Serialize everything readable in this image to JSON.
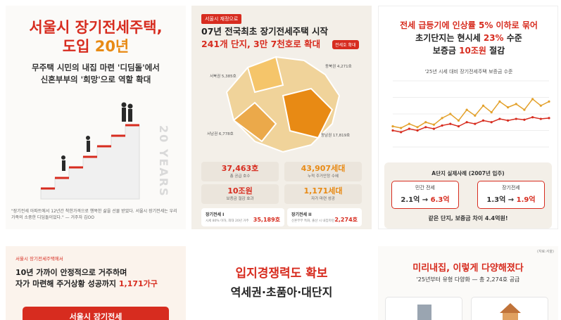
{
  "card1": {
    "title_line1": "서울시 장기전세주택,",
    "title_line2_pre": "도입 ",
    "title_line2_hl": "20년",
    "sub_line1": "무주택 시민의 내집 마련 '디딤돌'에서",
    "sub_line2": "신혼부부의 '희망'으로 역할 확대",
    "years": "20 YEARS",
    "quote": "\"장기전세 아파트에서 12년간 착한가격으로 행복한 삶을 선물 받았다. 서울시 장기전세는 우리 가족의 소중한 디딤돌이었다.\" — 거주자 김OO"
  },
  "card2": {
    "tag": "서울시 재정으로",
    "title": "07년 전국최초 장기전세주택 시작",
    "title2": "241개 단지, 3만 7천호로 확대",
    "badge": "전세호 확대",
    "map_labels": [
      "서북권 5,385호",
      "동북권 4,271호",
      "서남권 6,778호",
      "동남권 17,819호"
    ],
    "stats": [
      {
        "value": "37,463호",
        "label": "총 공급 호수"
      },
      {
        "value": "43,907세대",
        "label": "누적 주거안정 수혜"
      },
      {
        "value": "10조원",
        "label": "보증금 절감 효과"
      },
      {
        "value": "1,171세대",
        "label": "자가 마련 성공"
      }
    ],
    "bottom": [
      {
        "name": "장기전세 I",
        "desc": "시세 80% 이하, 최대 20년 거주",
        "value": "35,189호"
      },
      {
        "name": "장기전세 II",
        "desc": "신혼부부 특화, 출산 시 내집마련",
        "value": "2,274호"
      }
    ]
  },
  "card3": {
    "title_line1": "전세 급등기에 인상률 5% 이하로 묶어",
    "title_line2_pre": "초기단지는 현시세 ",
    "title_line2_hl": "23%",
    "title_line2_post": " 수준",
    "title_line3_pre": "보증금 ",
    "title_line3_hl": "10조원",
    "title_line3_post": " 절감",
    "chart_title": "'25년 시세 대비 장기전세주택 보증금 수준",
    "case_title": "A단지 실제사례 (2007년 입주)",
    "private_label": "민간 전세",
    "private_from": "2.1억",
    "private_to": "6.3억",
    "long_label": "장기전세",
    "long_from": "1.3억",
    "long_to": "1.9억",
    "diff": "같은 단지, 보증금 차이 4.4억원!"
  },
  "chart_data": {
    "type": "line",
    "title": "'25년 시세 대비 장기전세주택 보증금 수준",
    "series": [
      {
        "values": [
          25,
          23,
          28,
          24,
          30,
          27,
          35,
          40,
          32,
          45,
          38,
          50,
          42,
          55,
          48,
          52,
          45,
          58,
          50,
          55
        ]
      },
      {
        "values": [
          20,
          18,
          22,
          20,
          24,
          22,
          26,
          28,
          25,
          30,
          28,
          32,
          30,
          34,
          32,
          34,
          33,
          36,
          34,
          35
        ]
      }
    ],
    "ylim": [
      0,
      80
    ],
    "colors": {
      "line1": "#e3a12b",
      "line2": "#d72c1f"
    }
  },
  "card4": {
    "tag": "서울시 장기전세주택에서",
    "line1": "10년 가까이 안정적으로 거주하며",
    "line2_pre": "자가 마련해 주거상황 성공까지 ",
    "line2_hl": "1,171가구",
    "box": "서울시 장기전세"
  },
  "card5": {
    "line1": "입지경쟁력도 확보",
    "line2": "역세권·초품아·대단지"
  },
  "card6": {
    "note": "(자료:서울)",
    "title": "미리내집, 이렇게 다양해졌다",
    "sub": "'25년부터 유형 다양화 — 총 2,274호 공급"
  },
  "colors": {
    "accent": "#d72c1f",
    "secondary": "#e88a14"
  }
}
